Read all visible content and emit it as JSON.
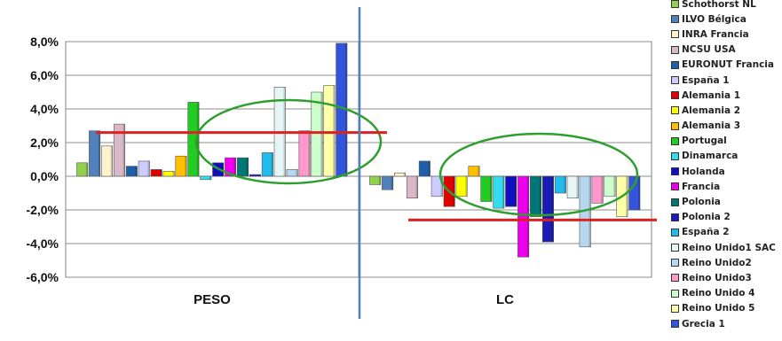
{
  "chart_data": {
    "type": "bar",
    "categories": [
      "PESO",
      "LC"
    ],
    "ylim": [
      -6,
      8
    ],
    "yticks": [
      "8,0%",
      "6,0%",
      "4,0%",
      "2,0%",
      "0,0%",
      "-2,0%",
      "-4,0%",
      "-6,0%"
    ],
    "grid": true,
    "legend_position": "right",
    "series": [
      {
        "name": "Schothorst NL",
        "color": "#92d050",
        "values": [
          0.8,
          -0.5
        ]
      },
      {
        "name": "ILVO Bélgica",
        "color": "#4f81bd",
        "values": [
          2.7,
          -0.8
        ]
      },
      {
        "name": "INRA Francia",
        "color": "#fff2cc",
        "values": [
          1.8,
          0.2
        ]
      },
      {
        "name": "NCSU USA",
        "color": "#d9b8c8",
        "values": [
          3.1,
          -1.3
        ]
      },
      {
        "name": "EURONUT Francia",
        "color": "#1f5fa8",
        "values": [
          0.6,
          0.9
        ]
      },
      {
        "name": "España 1",
        "color": "#ccccff",
        "values": [
          0.9,
          -1.2
        ]
      },
      {
        "name": "Alemania 1",
        "color": "#e00000",
        "values": [
          0.4,
          -1.8
        ]
      },
      {
        "name": "Alemania 2",
        "color": "#ffff00",
        "values": [
          0.3,
          -1.2
        ]
      },
      {
        "name": "Alemania 3",
        "color": "#ffc000",
        "values": [
          1.2,
          0.6
        ]
      },
      {
        "name": "Portugal",
        "color": "#22cc22",
        "values": [
          4.4,
          -1.5
        ]
      },
      {
        "name": "Dinamarca",
        "color": "#33ddee",
        "values": [
          -0.2,
          -1.9
        ]
      },
      {
        "name": "Holanda",
        "color": "#1010c0",
        "values": [
          0.8,
          -1.8
        ]
      },
      {
        "name": "Francia",
        "color": "#ee00ee",
        "values": [
          1.1,
          -4.8
        ]
      },
      {
        "name": "Polonia",
        "color": "#007777",
        "values": [
          1.1,
          -2.4
        ]
      },
      {
        "name": "Polonia 2",
        "color": "#1b1bb5",
        "values": [
          0.1,
          -3.9
        ]
      },
      {
        "name": "España 2",
        "color": "#22bbee",
        "values": [
          1.4,
          -1.0
        ]
      },
      {
        "name": "Reino Unido1 SAC",
        "color": "#e6f6f6",
        "values": [
          5.3,
          -1.3
        ]
      },
      {
        "name": "Reino Unido2",
        "color": "#b7d7f0",
        "values": [
          0.4,
          -4.2
        ]
      },
      {
        "name": "Reino Unido3",
        "color": "#ff99cc",
        "values": [
          2.7,
          -1.6
        ]
      },
      {
        "name": "Reino Unido 4",
        "color": "#ccffcc",
        "values": [
          5.0,
          -1.2
        ]
      },
      {
        "name": "Reino Unido 5",
        "color": "#ffffaa",
        "values": [
          5.4,
          -2.4
        ]
      },
      {
        "name": "Grecia 1",
        "color": "#3355dd",
        "values": [
          7.9,
          -2.0
        ]
      }
    ],
    "legend": [
      {
        "label": "Schothorst NL",
        "color": "#92d050"
      },
      {
        "label": "ILVO Bélgica",
        "color": "#4f81bd"
      },
      {
        "label": "INRA Francia",
        "color": "#fff2cc"
      },
      {
        "label": "NCSU USA",
        "color": "#d9b8c8"
      },
      {
        "label": "EURONUT Francia",
        "color": "#1f5fa8"
      },
      {
        "label": "España 1",
        "color": "#ccccff"
      },
      {
        "label": "Alemania 1",
        "color": "#e00000"
      },
      {
        "label": "Alemania 2",
        "color": "#ffff00"
      },
      {
        "label": "Alemania 3",
        "color": "#ffc000"
      },
      {
        "label": "Portugal",
        "color": "#22cc22"
      },
      {
        "label": "Dinamarca",
        "color": "#33ddee"
      },
      {
        "label": "Holanda",
        "color": "#1010c0"
      },
      {
        "label": "Francia",
        "color": "#ee00ee"
      },
      {
        "label": "Polonia",
        "color": "#007777"
      },
      {
        "label": "Polonia 2",
        "color": "#1b1bb5"
      },
      {
        "label": "España 2",
        "color": "#22bbee"
      },
      {
        "label": "Reino Unido1 SAC",
        "color": "#e6f6f6"
      },
      {
        "label": "Reino Unido2",
        "color": "#b7d7f0"
      },
      {
        "label": "Reino Unido3",
        "color": "#ff99cc"
      },
      {
        "label": "Reino Unido 4",
        "color": "#ccffcc"
      },
      {
        "label": "Reino Unido 5",
        "color": "#ffffaa"
      },
      {
        "label": "Grecia 1",
        "color": "#3355dd"
      }
    ],
    "annotations": {
      "highlight_ellipse_color": "#2e9e2e",
      "reference_line_color": "#e02020",
      "divider_color": "#4f81bd",
      "peso_reference_y": 2.6,
      "lc_reference_y": -2.6
    }
  }
}
